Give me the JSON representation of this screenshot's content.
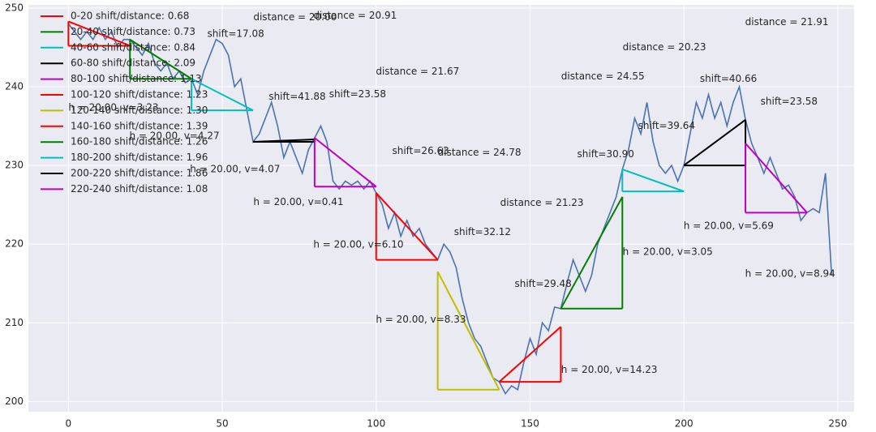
{
  "chart_data": {
    "type": "line",
    "xlim": [
      -13,
      255.3
    ],
    "ylim": [
      198.7,
      250.4
    ],
    "xticks": [
      0,
      50,
      100,
      150,
      200,
      250
    ],
    "yticks": [
      200,
      210,
      220,
      230,
      240,
      250
    ],
    "grid": true,
    "legend": "upper left",
    "x": [
      0,
      2,
      4,
      6,
      8,
      10,
      12,
      14,
      16,
      18,
      20,
      22,
      24,
      26,
      28,
      30,
      32,
      34,
      36,
      38,
      40,
      42,
      44,
      46,
      48,
      50,
      52,
      54,
      56,
      58,
      60,
      62,
      64,
      66,
      68,
      70,
      72,
      74,
      76,
      78,
      80,
      82,
      84,
      86,
      88,
      90,
      92,
      94,
      96,
      98,
      100,
      102,
      104,
      106,
      108,
      110,
      112,
      114,
      116,
      118,
      120,
      122,
      124,
      126,
      128,
      130,
      132,
      134,
      136,
      138,
      140,
      142,
      144,
      146,
      148,
      150,
      152,
      154,
      156,
      158,
      160,
      162,
      164,
      166,
      168,
      170,
      172,
      174,
      176,
      178,
      180,
      182,
      184,
      186,
      188,
      190,
      192,
      194,
      196,
      198,
      200,
      202,
      204,
      206,
      208,
      210,
      212,
      214,
      216,
      218,
      220,
      222,
      224,
      226,
      228,
      230,
      232,
      234,
      236,
      238,
      240,
      242,
      244,
      246,
      248
    ],
    "series": [
      {
        "color": "#4c72b0",
        "values": [
          248,
          247,
          246,
          247,
          246,
          247.5,
          246,
          247,
          245,
          246,
          246,
          245,
          244,
          245.5,
          243,
          242,
          243,
          241,
          242,
          240.5,
          241,
          239,
          242,
          244,
          246,
          245.5,
          244,
          240,
          241,
          237,
          233,
          234,
          236,
          238,
          235,
          231,
          233,
          231,
          229,
          232,
          233.5,
          235,
          233,
          228,
          227,
          228,
          227.5,
          228,
          227,
          228,
          226.5,
          225,
          222,
          224,
          221,
          223,
          221,
          222,
          220,
          219,
          218,
          220,
          219,
          217,
          213,
          210,
          208,
          207,
          205,
          203,
          202.5,
          201,
          202,
          201.5,
          205,
          208,
          206,
          210,
          209,
          212,
          211.8,
          215,
          218,
          216,
          214,
          216,
          220,
          222,
          224,
          226,
          229.5,
          232,
          236,
          234,
          238,
          233,
          230,
          229,
          230,
          228,
          230,
          234,
          238,
          236,
          239,
          236,
          238,
          235,
          238,
          240,
          235.8,
          232.8,
          231,
          229,
          231,
          229,
          227,
          227.5,
          226,
          223,
          224,
          224.5,
          224,
          229,
          216
        ]
      }
    ],
    "triangles": [
      {
        "name": "0-20 shift/distance: 0.68",
        "color": "#ff0000",
        "x": [
          0,
          20
        ],
        "y": [
          248.3,
          245.2
        ]
      },
      {
        "name": "20-40 shift/distance: 0.73",
        "color": "#008000",
        "x": [
          20,
          40
        ],
        "y": [
          246,
          241
        ]
      },
      {
        "name": "40-60 shift/distance: 0.84",
        "color": "#00bfbf",
        "x": [
          40,
          60
        ],
        "y": [
          241,
          237
        ]
      },
      {
        "name": "60-80 shift/distance: 2.09",
        "color": "#000000",
        "x": [
          60,
          80
        ],
        "y": [
          233,
          233.3
        ]
      },
      {
        "name": "80-100 shift/distance: 1.13",
        "color": "#bf00bf",
        "x": [
          80,
          100
        ],
        "y": [
          233.5,
          227.3
        ]
      },
      {
        "name": "100-120 shift/distance: 1.23",
        "color": "#ff0000",
        "x": [
          100,
          120
        ],
        "y": [
          226.5,
          218
        ]
      },
      {
        "name": "120-140 shift/distance: 1.30",
        "color": "#bfbf00",
        "x": [
          120,
          140
        ],
        "y": [
          216.5,
          201.5
        ]
      },
      {
        "name": "140-160 shift/distance: 1.39",
        "color": "#ff0000",
        "x": [
          140,
          160
        ],
        "y": [
          202.5,
          209.5
        ]
      },
      {
        "name": "160-180 shift/distance: 1.26",
        "color": "#008000",
        "x": [
          160,
          180
        ],
        "y": [
          211.8,
          226
        ]
      },
      {
        "name": "180-200 shift/distance: 1.96",
        "color": "#00bfbf",
        "x": [
          180,
          200
        ],
        "y": [
          229.5,
          226.7
        ]
      },
      {
        "name": "200-220 shift/distance: 1.86",
        "color": "#000000",
        "x": [
          200,
          220
        ],
        "y": [
          230,
          235.8
        ]
      },
      {
        "name": "220-240 shift/distance: 1.08",
        "color": "#bf00bf",
        "x": [
          220,
          240
        ],
        "y": [
          232.8,
          224
        ]
      }
    ],
    "annotations": [
      {
        "text": "distance = 20.00",
        "x": 60.1,
        "y": 248.8
      },
      {
        "text": "distance = 20.91",
        "x": 79.6,
        "y": 249.0
      },
      {
        "text": "shift=17.08",
        "x": 45.1,
        "y": 246.7
      },
      {
        "text": "distance = 21.67",
        "x": 99.9,
        "y": 241.9
      },
      {
        "text": "shift=41.88",
        "x": 65.1,
        "y": 238.7
      },
      {
        "text": "shift=23.58",
        "x": 84.7,
        "y": 239.0
      },
      {
        "text": "h = 20.00, v=3.23",
        "x": 0,
        "y": 237.3
      },
      {
        "text": "h = 20.00, v=4.27",
        "x": 19.8,
        "y": 233.7
      },
      {
        "text": "h = 20.00, v=4.07",
        "x": 39.5,
        "y": 229.5
      },
      {
        "text": "shift=26.63",
        "x": 105.2,
        "y": 231.8
      },
      {
        "text": "distance = 24.78",
        "x": 120,
        "y": 231.6
      },
      {
        "text": "h = 20.00, v=0.41",
        "x": 60.1,
        "y": 225.3
      },
      {
        "text": "h = 20.00, v=6.10",
        "x": 79.6,
        "y": 219.9
      },
      {
        "text": "shift=32.12",
        "x": 125.3,
        "y": 221.5
      },
      {
        "text": "distance = 21.23",
        "x": 140.3,
        "y": 225.2
      },
      {
        "text": "h = 20.00, v=8.33",
        "x": 99.9,
        "y": 210.4
      },
      {
        "text": "shift=29.48",
        "x": 145,
        "y": 214.9
      },
      {
        "text": "h = 20.00, v=14.23",
        "x": 160.1,
        "y": 204
      },
      {
        "text": "distance = 24.55",
        "x": 160.1,
        "y": 241.3
      },
      {
        "text": "shift=30.90",
        "x": 165.3,
        "y": 231.4
      },
      {
        "text": "shift=39.64",
        "x": 185.1,
        "y": 235
      },
      {
        "text": "distance = 20.23",
        "x": 180.1,
        "y": 245
      },
      {
        "text": "h = 20.00, v=3.05",
        "x": 180.1,
        "y": 219
      },
      {
        "text": "shift=40.66",
        "x": 205.2,
        "y": 241
      },
      {
        "text": "h = 20.00, v=5.69",
        "x": 199.9,
        "y": 222.3
      },
      {
        "text": "distance = 21.91",
        "x": 219.9,
        "y": 248.2
      },
      {
        "text": "shift=23.58",
        "x": 224.9,
        "y": 238.1
      },
      {
        "text": "h = 20.00, v=8.94",
        "x": 219.9,
        "y": 216.2
      }
    ]
  }
}
